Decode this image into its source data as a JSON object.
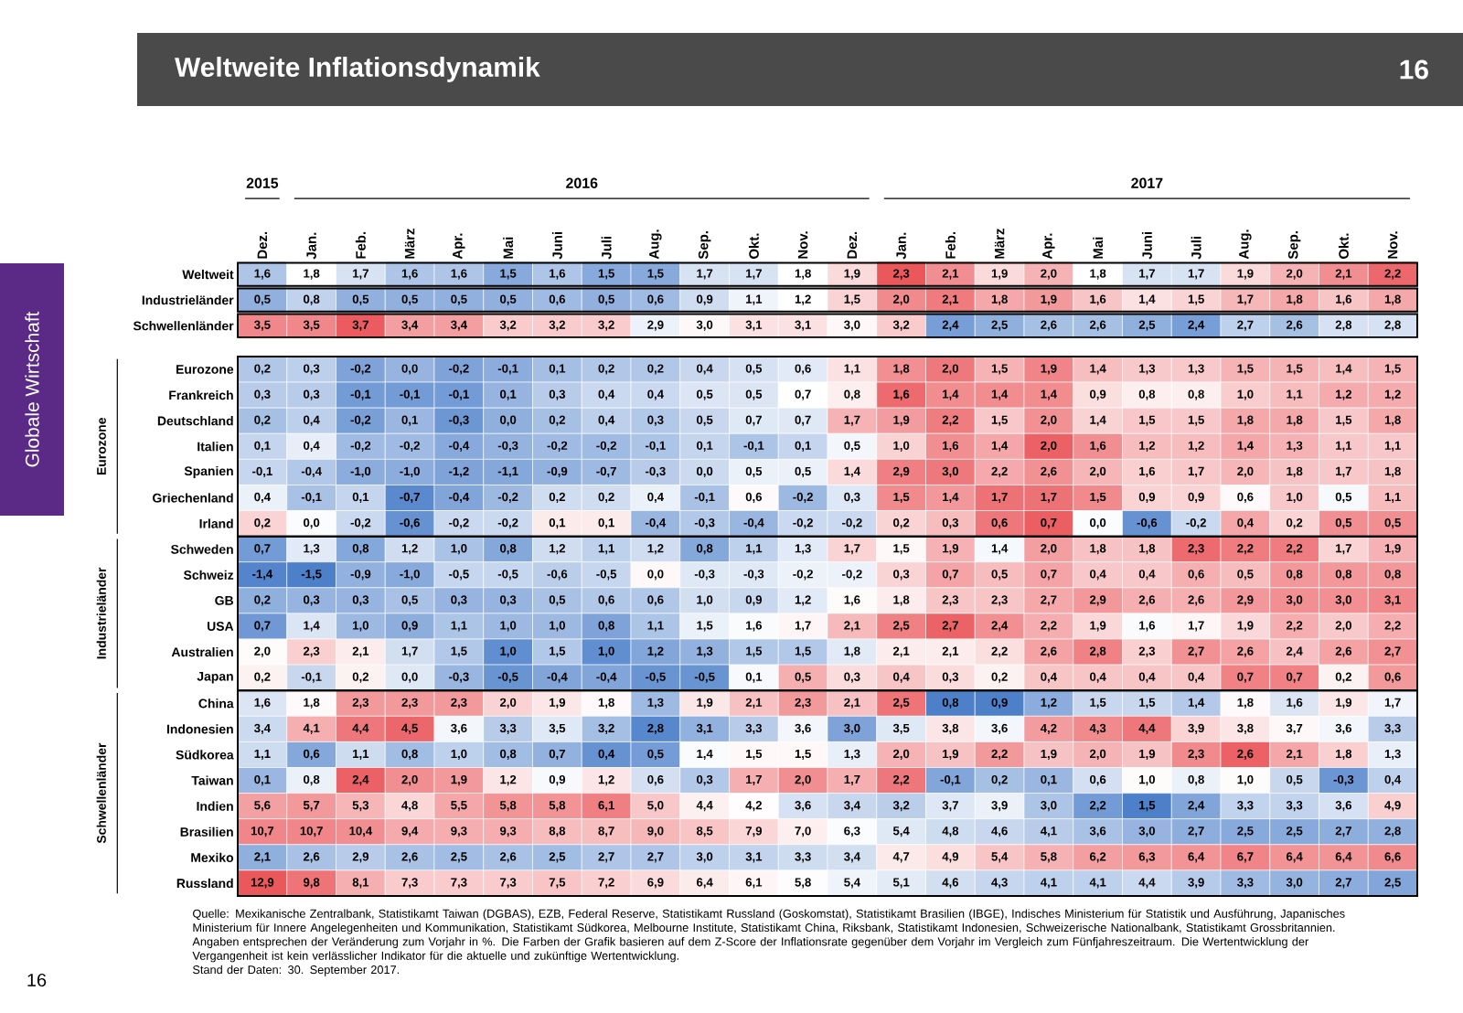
{
  "chart_data": {
    "type": "heatmap",
    "title": "Weltweite Inflationsdynamik",
    "annotations": [
      "2015",
      "2016",
      "2017",
      "Globale Wirtschaft",
      "Eurozone",
      "Industrieländer",
      "Schwellenländer",
      "Quelle: Mexikanische Zentralbank, Statistikamt Taiwan (DGBAS), EZB, Federal Reserve, Statistikamt Russland (Goskomstat), Statistikamt Brasilien (IBGE), Indisches Ministerium für Statistik und Ausführung, Japanisches Ministerium für Innere Angelegenheiten und Kommunikation, Statistikamt Südkorea, Melbourne Institute, Statistikamt China, Riksbank, Statistikamt Indonesien, Schweizerische Nationalbank, Statistikamt Grossbritannien.",
      "Angaben entsprechen der Veränderung zum Vorjahr in %. Die Farben der Grafik basieren auf dem Z-Score der Inflationsrate gegenüber dem Vorjahr im Vergleich zum Fünfjahreszeitraum. Die Wertentwicklung der Vergangenheit ist kein verlässlicher Indikator für die aktuelle und zukünftige Wertentwicklung.",
      "Stand der Daten: 30. September 2017.",
      "16",
      "16"
    ],
    "categories": [
      "Dez.",
      "Jan.",
      "Feb.",
      "März",
      "Apr.",
      "Mai",
      "Juni",
      "Juli",
      "Aug.",
      "Sep.",
      "Okt.",
      "Nov.",
      "Dez.",
      "Jan.",
      "Feb.",
      "März",
      "Apr.",
      "Mai",
      "Juni",
      "Juli",
      "Aug.",
      "Sep.",
      "Okt.",
      "Nov."
    ],
    "y_categories": [
      "Weltweit",
      "Industrieländer",
      "Schwellenländer",
      "Eurozone",
      "Frankreich",
      "Deutschland",
      "Italien",
      "Spanien",
      "Griechenland",
      "Irland",
      "Schweden",
      "Schweiz",
      "GB",
      "USA",
      "Australien",
      "Japan",
      "China",
      "Indonesien",
      "Südkorea",
      "Taiwan",
      "Indien",
      "Brasilien",
      "Mexiko",
      "Russland"
    ],
    "cells": [
      [
        1.6,
        1.8,
        1.7,
        1.6,
        1.6,
        1.5,
        1.6,
        1.5,
        1.5,
        1.7,
        1.7,
        1.8,
        1.9,
        2.3,
        2.1,
        1.9,
        2.0,
        1.8,
        1.7,
        1.7,
        1.9,
        2.0,
        2.1,
        2.2
      ],
      [
        0.5,
        0.8,
        0.5,
        0.5,
        0.5,
        0.5,
        0.6,
        0.5,
        0.6,
        0.9,
        1.1,
        1.2,
        1.5,
        2.0,
        2.1,
        1.8,
        1.9,
        1.6,
        1.4,
        1.5,
        1.7,
        1.8,
        1.6,
        1.8
      ],
      [
        3.5,
        3.5,
        3.7,
        3.4,
        3.4,
        3.2,
        3.2,
        3.2,
        2.9,
        3.0,
        3.1,
        3.1,
        3.0,
        3.2,
        2.4,
        2.5,
        2.6,
        2.6,
        2.5,
        2.4,
        2.7,
        2.6,
        2.8,
        2.8
      ],
      [
        0.2,
        0.3,
        -0.2,
        0.0,
        -0.2,
        -0.1,
        0.1,
        0.2,
        0.2,
        0.4,
        0.5,
        0.6,
        1.1,
        1.8,
        2.0,
        1.5,
        1.9,
        1.4,
        1.3,
        1.3,
        1.5,
        1.5,
        1.4,
        1.5
      ],
      [
        0.3,
        0.3,
        -0.1,
        -0.1,
        -0.1,
        0.1,
        0.3,
        0.4,
        0.4,
        0.5,
        0.5,
        0.7,
        0.8,
        1.6,
        1.4,
        1.4,
        1.4,
        0.9,
        0.8,
        0.8,
        1.0,
        1.1,
        1.2,
        1.2
      ],
      [
        0.2,
        0.4,
        -0.2,
        0.1,
        -0.3,
        0.0,
        0.2,
        0.4,
        0.3,
        0.5,
        0.7,
        0.7,
        1.7,
        1.9,
        2.2,
        1.5,
        2.0,
        1.4,
        1.5,
        1.5,
        1.8,
        1.8,
        1.5,
        1.8
      ],
      [
        0.1,
        0.4,
        -0.2,
        -0.2,
        -0.4,
        -0.3,
        -0.2,
        -0.2,
        -0.1,
        0.1,
        -0.1,
        0.1,
        0.5,
        1.0,
        1.6,
        1.4,
        2.0,
        1.6,
        1.2,
        1.2,
        1.4,
        1.3,
        1.1,
        1.1
      ],
      [
        -0.1,
        -0.4,
        -1.0,
        -1.0,
        -1.2,
        -1.1,
        -0.9,
        -0.7,
        -0.3,
        0.0,
        0.5,
        0.5,
        1.4,
        2.9,
        3.0,
        2.2,
        2.6,
        2.0,
        1.6,
        1.7,
        2.0,
        1.8,
        1.7,
        1.8
      ],
      [
        0.4,
        -0.1,
        0.1,
        -0.7,
        -0.4,
        -0.2,
        0.2,
        0.2,
        0.4,
        -0.1,
        0.6,
        -0.2,
        0.3,
        1.5,
        1.4,
        1.7,
        1.7,
        1.5,
        0.9,
        0.9,
        0.6,
        1.0,
        0.5,
        1.1
      ],
      [
        0.2,
        0.0,
        -0.2,
        -0.6,
        -0.2,
        -0.2,
        0.1,
        0.1,
        -0.4,
        -0.3,
        -0.4,
        -0.2,
        -0.2,
        0.2,
        0.3,
        0.6,
        0.7,
        0.0,
        -0.6,
        -0.2,
        0.4,
        0.2,
        0.5,
        0.5
      ],
      [
        0.7,
        1.3,
        0.8,
        1.2,
        1.0,
        0.8,
        1.2,
        1.1,
        1.2,
        0.8,
        1.1,
        1.3,
        1.7,
        1.5,
        1.9,
        1.4,
        2.0,
        1.8,
        1.8,
        2.3,
        2.2,
        2.2,
        1.7,
        1.9
      ],
      [
        -1.4,
        -1.5,
        -0.9,
        -1.0,
        -0.5,
        -0.5,
        -0.6,
        -0.5,
        0.0,
        -0.3,
        -0.3,
        -0.2,
        -0.2,
        0.3,
        0.7,
        0.5,
        0.7,
        0.4,
        0.4,
        0.6,
        0.5,
        0.8,
        0.8,
        0.8
      ],
      [
        0.2,
        0.3,
        0.3,
        0.5,
        0.3,
        0.3,
        0.5,
        0.6,
        0.6,
        1.0,
        0.9,
        1.2,
        1.6,
        1.8,
        2.3,
        2.3,
        2.7,
        2.9,
        2.6,
        2.6,
        2.9,
        3.0,
        3.0,
        3.1
      ],
      [
        0.7,
        1.4,
        1.0,
        0.9,
        1.1,
        1.0,
        1.0,
        0.8,
        1.1,
        1.5,
        1.6,
        1.7,
        2.1,
        2.5,
        2.7,
        2.4,
        2.2,
        1.9,
        1.6,
        1.7,
        1.9,
        2.2,
        2.0,
        2.2
      ],
      [
        2.0,
        2.3,
        2.1,
        1.7,
        1.5,
        1.0,
        1.5,
        1.0,
        1.2,
        1.3,
        1.5,
        1.5,
        1.8,
        2.1,
        2.1,
        2.2,
        2.6,
        2.8,
        2.3,
        2.7,
        2.6,
        2.4,
        2.6,
        2.7
      ],
      [
        0.2,
        -0.1,
        0.2,
        0.0,
        -0.3,
        -0.5,
        -0.4,
        -0.4,
        -0.5,
        -0.5,
        0.1,
        0.5,
        0.3,
        0.4,
        0.3,
        0.2,
        0.4,
        0.4,
        0.4,
        0.4,
        0.7,
        0.7,
        0.2,
        0.6
      ],
      [
        1.6,
        1.8,
        2.3,
        2.3,
        2.3,
        2.0,
        1.9,
        1.8,
        1.3,
        1.9,
        2.1,
        2.3,
        2.1,
        2.5,
        0.8,
        0.9,
        1.2,
        1.5,
        1.5,
        1.4,
        1.8,
        1.6,
        1.9,
        1.7
      ],
      [
        3.4,
        4.1,
        4.4,
        4.5,
        3.6,
        3.3,
        3.5,
        3.2,
        2.8,
        3.1,
        3.3,
        3.6,
        3.0,
        3.5,
        3.8,
        3.6,
        4.2,
        4.3,
        4.4,
        3.9,
        3.8,
        3.7,
        3.6,
        3.3
      ],
      [
        1.1,
        0.6,
        1.1,
        0.8,
        1.0,
        0.8,
        0.7,
        0.4,
        0.5,
        1.4,
        1.5,
        1.5,
        1.3,
        2.0,
        1.9,
        2.2,
        1.9,
        2.0,
        1.9,
        2.3,
        2.6,
        2.1,
        1.8,
        1.3
      ],
      [
        0.1,
        0.8,
        2.4,
        2.0,
        1.9,
        1.2,
        0.9,
        1.2,
        0.6,
        0.3,
        1.7,
        2.0,
        1.7,
        2.2,
        -0.1,
        0.2,
        0.1,
        0.6,
        1.0,
        0.8,
        1.0,
        0.5,
        -0.3,
        0.4
      ],
      [
        5.6,
        5.7,
        5.3,
        4.8,
        5.5,
        5.8,
        5.8,
        6.1,
        5.0,
        4.4,
        4.2,
        3.6,
        3.4,
        3.2,
        3.7,
        3.9,
        3.0,
        2.2,
        1.5,
        2.4,
        3.3,
        3.3,
        3.6,
        4.9
      ],
      [
        10.7,
        10.7,
        10.4,
        9.4,
        9.3,
        9.3,
        8.8,
        8.7,
        9.0,
        8.5,
        7.9,
        7.0,
        6.3,
        5.4,
        4.8,
        4.6,
        4.1,
        3.6,
        3.0,
        2.7,
        2.5,
        2.5,
        2.7,
        2.8
      ],
      [
        2.1,
        2.6,
        2.9,
        2.6,
        2.5,
        2.6,
        2.5,
        2.7,
        2.7,
        3.0,
        3.1,
        3.3,
        3.4,
        4.7,
        4.9,
        5.4,
        5.8,
        6.2,
        6.3,
        6.4,
        6.7,
        6.4,
        6.4,
        6.6
      ],
      [
        12.9,
        9.8,
        8.1,
        7.3,
        7.3,
        7.3,
        7.5,
        7.2,
        6.9,
        6.4,
        6.1,
        5.8,
        5.4,
        5.1,
        4.6,
        4.3,
        4.1,
        4.1,
        4.4,
        3.9,
        3.3,
        3.0,
        2.7,
        2.5
      ]
    ],
    "cell_labels": [
      [
        "1,6",
        "1,8",
        "1,7",
        "1,6",
        "1,6",
        "1,5",
        "1,6",
        "1,5",
        "1,5",
        "1,7",
        "1,7",
        "1,8",
        "1,9",
        "2,3",
        "2,1",
        "1,9",
        "2,0",
        "1,8",
        "1,7",
        "1,7",
        "1,9",
        "2,0",
        "2,1",
        "2,2"
      ],
      [
        "0,5",
        "0,8",
        "0,5",
        "0,5",
        "0,5",
        "0,5",
        "0,6",
        "0,5",
        "0,6",
        "0,9",
        "1,1",
        "1,2",
        "1,5",
        "2,0",
        "2,1",
        "1,8",
        "1,9",
        "1,6",
        "1,4",
        "1,5",
        "1,7",
        "1,8",
        "1,6",
        "1,8"
      ],
      [
        "3,5",
        "3,5",
        "3,7",
        "3,4",
        "3,4",
        "3,2",
        "3,2",
        "3,2",
        "2,9",
        "3,0",
        "3,1",
        "3,1",
        "3,0",
        "3,2",
        "2,4",
        "2,5",
        "2,6",
        "2,6",
        "2,5",
        "2,4",
        "2,7",
        "2,6",
        "2,8",
        "2,8"
      ],
      [
        "0,2",
        "0,3",
        "-0,2",
        "0,0",
        "-0,2",
        "-0,1",
        "0,1",
        "0,2",
        "0,2",
        "0,4",
        "0,5",
        "0,6",
        "1,1",
        "1,8",
        "2,0",
        "1,5",
        "1,9",
        "1,4",
        "1,3",
        "1,3",
        "1,5",
        "1,5",
        "1,4",
        "1,5"
      ],
      [
        "0,3",
        "0,3",
        "-0,1",
        "-0,1",
        "-0,1",
        "0,1",
        "0,3",
        "0,4",
        "0,4",
        "0,5",
        "0,5",
        "0,7",
        "0,8",
        "1,6",
        "1,4",
        "1,4",
        "1,4",
        "0,9",
        "0,8",
        "0,8",
        "1,0",
        "1,1",
        "1,2",
        "1,2"
      ],
      [
        "0,2",
        "0,4",
        "-0,2",
        "0,1",
        "-0,3",
        "0,0",
        "0,2",
        "0,4",
        "0,3",
        "0,5",
        "0,7",
        "0,7",
        "1,7",
        "1,9",
        "2,2",
        "1,5",
        "2,0",
        "1,4",
        "1,5",
        "1,5",
        "1,8",
        "1,8",
        "1,5",
        "1,8"
      ],
      [
        "0,1",
        "0,4",
        "-0,2",
        "-0,2",
        "-0,4",
        "-0,3",
        "-0,2",
        "-0,2",
        "-0,1",
        "0,1",
        "-0,1",
        "0,1",
        "0,5",
        "1,0",
        "1,6",
        "1,4",
        "2,0",
        "1,6",
        "1,2",
        "1,2",
        "1,4",
        "1,3",
        "1,1",
        "1,1"
      ],
      [
        "-0,1",
        "-0,4",
        "-1,0",
        "-1,0",
        "-1,2",
        "-1,1",
        "-0,9",
        "-0,7",
        "-0,3",
        "0,0",
        "0,5",
        "0,5",
        "1,4",
        "2,9",
        "3,0",
        "2,2",
        "2,6",
        "2,0",
        "1,6",
        "1,7",
        "2,0",
        "1,8",
        "1,7",
        "1,8"
      ],
      [
        "0,4",
        "-0,1",
        "0,1",
        "-0,7",
        "-0,4",
        "-0,2",
        "0,2",
        "0,2",
        "0,4",
        "-0,1",
        "0,6",
        "-0,2",
        "0,3",
        "1,5",
        "1,4",
        "1,7",
        "1,7",
        "1,5",
        "0,9",
        "0,9",
        "0,6",
        "1,0",
        "0,5",
        "1,1"
      ],
      [
        "0,2",
        "0,0",
        "-0,2",
        "-0,6",
        "-0,2",
        "-0,2",
        "0,1",
        "0,1",
        "-0,4",
        "-0,3",
        "-0,4",
        "-0,2",
        "-0,2",
        "0,2",
        "0,3",
        "0,6",
        "0,7",
        "0,0",
        "-0,6",
        "-0,2",
        "0,4",
        "0,2",
        "0,5",
        "0,5"
      ],
      [
        "0,7",
        "1,3",
        "0,8",
        "1,2",
        "1,0",
        "0,8",
        "1,2",
        "1,1",
        "1,2",
        "0,8",
        "1,1",
        "1,3",
        "1,7",
        "1,5",
        "1,9",
        "1,4",
        "2,0",
        "1,8",
        "1,8",
        "2,3",
        "2,2",
        "2,2",
        "1,7",
        "1,9"
      ],
      [
        "-1,4",
        "-1,5",
        "-0,9",
        "-1,0",
        "-0,5",
        "-0,5",
        "-0,6",
        "-0,5",
        "0,0",
        "-0,3",
        "-0,3",
        "-0,2",
        "-0,2",
        "0,3",
        "0,7",
        "0,5",
        "0,7",
        "0,4",
        "0,4",
        "0,6",
        "0,5",
        "0,8",
        "0,8",
        "0,8"
      ],
      [
        "0,2",
        "0,3",
        "0,3",
        "0,5",
        "0,3",
        "0,3",
        "0,5",
        "0,6",
        "0,6",
        "1,0",
        "0,9",
        "1,2",
        "1,6",
        "1,8",
        "2,3",
        "2,3",
        "2,7",
        "2,9",
        "2,6",
        "2,6",
        "2,9",
        "3,0",
        "3,0",
        "3,1"
      ],
      [
        "0,7",
        "1,4",
        "1,0",
        "0,9",
        "1,1",
        "1,0",
        "1,0",
        "0,8",
        "1,1",
        "1,5",
        "1,6",
        "1,7",
        "2,1",
        "2,5",
        "2,7",
        "2,4",
        "2,2",
        "1,9",
        "1,6",
        "1,7",
        "1,9",
        "2,2",
        "2,0",
        "2,2"
      ],
      [
        "2,0",
        "2,3",
        "2,1",
        "1,7",
        "1,5",
        "1,0",
        "1,5",
        "1,0",
        "1,2",
        "1,3",
        "1,5",
        "1,5",
        "1,8",
        "2,1",
        "2,1",
        "2,2",
        "2,6",
        "2,8",
        "2,3",
        "2,7",
        "2,6",
        "2,4",
        "2,6",
        "2,7"
      ],
      [
        "0,2",
        "-0,1",
        "0,2",
        "0,0",
        "-0,3",
        "-0,5",
        "-0,4",
        "-0,4",
        "-0,5",
        "-0,5",
        "0,1",
        "0,5",
        "0,3",
        "0,4",
        "0,3",
        "0,2",
        "0,4",
        "0,4",
        "0,4",
        "0,4",
        "0,7",
        "0,7",
        "0,2",
        "0,6"
      ],
      [
        "1,6",
        "1,8",
        "2,3",
        "2,3",
        "2,3",
        "2,0",
        "1,9",
        "1,8",
        "1,3",
        "1,9",
        "2,1",
        "2,3",
        "2,1",
        "2,5",
        "0,8",
        "0,9",
        "1,2",
        "1,5",
        "1,5",
        "1,4",
        "1,8",
        "1,6",
        "1,9",
        "1,7"
      ],
      [
        "3,4",
        "4,1",
        "4,4",
        "4,5",
        "3,6",
        "3,3",
        "3,5",
        "3,2",
        "2,8",
        "3,1",
        "3,3",
        "3,6",
        "3,0",
        "3,5",
        "3,8",
        "3,6",
        "4,2",
        "4,3",
        "4,4",
        "3,9",
        "3,8",
        "3,7",
        "3,6",
        "3,3"
      ],
      [
        "1,1",
        "0,6",
        "1,1",
        "0,8",
        "1,0",
        "0,8",
        "0,7",
        "0,4",
        "0,5",
        "1,4",
        "1,5",
        "1,5",
        "1,3",
        "2,0",
        "1,9",
        "2,2",
        "1,9",
        "2,0",
        "1,9",
        "2,3",
        "2,6",
        "2,1",
        "1,8",
        "1,3"
      ],
      [
        "0,1",
        "0,8",
        "2,4",
        "2,0",
        "1,9",
        "1,2",
        "0,9",
        "1,2",
        "0,6",
        "0,3",
        "1,7",
        "2,0",
        "1,7",
        "2,2",
        "-0,1",
        "0,2",
        "0,1",
        "0,6",
        "1,0",
        "0,8",
        "1,0",
        "0,5",
        "-0,3",
        "0,4"
      ],
      [
        "5,6",
        "5,7",
        "5,3",
        "4,8",
        "5,5",
        "5,8",
        "5,8",
        "6,1",
        "5,0",
        "4,4",
        "4,2",
        "3,6",
        "3,4",
        "3,2",
        "3,7",
        "3,9",
        "3,0",
        "2,2",
        "1,5",
        "2,4",
        "3,3",
        "3,3",
        "3,6",
        "4,9"
      ],
      [
        "10,7",
        "10,7",
        "10,4",
        "9,4",
        "9,3",
        "9,3",
        "8,8",
        "8,7",
        "9,0",
        "8,5",
        "7,9",
        "7,0",
        "6,3",
        "5,4",
        "4,8",
        "4,6",
        "4,1",
        "3,6",
        "3,0",
        "2,7",
        "2,5",
        "2,5",
        "2,7",
        "2,8"
      ],
      [
        "2,1",
        "2,6",
        "2,9",
        "2,6",
        "2,5",
        "2,6",
        "2,5",
        "2,7",
        "2,7",
        "3,0",
        "3,1",
        "3,3",
        "3,4",
        "4,7",
        "4,9",
        "5,4",
        "5,8",
        "6,2",
        "6,3",
        "6,4",
        "6,7",
        "6,4",
        "6,4",
        "6,6"
      ],
      [
        "12,9",
        "9,8",
        "8,1",
        "7,3",
        "7,3",
        "7,3",
        "7,5",
        "7,2",
        "6,9",
        "6,4",
        "6,1",
        "5,8",
        "5,4",
        "5,1",
        "4,6",
        "4,3",
        "4,1",
        "4,1",
        "4,4",
        "3,9",
        "3,3",
        "3,0",
        "2,7",
        "2,5"
      ]
    ]
  }
}
